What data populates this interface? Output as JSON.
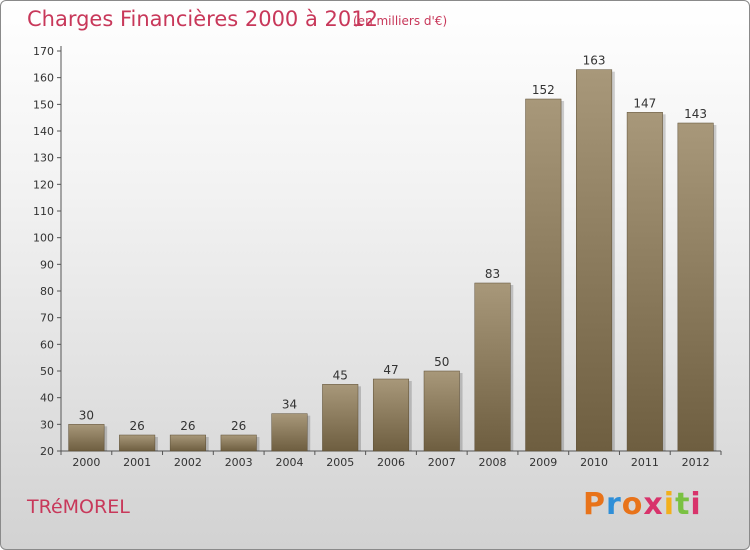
{
  "header": {
    "title": "Charges Financières 2000 à 2012",
    "subtitle": "(en milliers d'€)"
  },
  "footer": {
    "commune": "TRéMOREL",
    "logo_text": "Proxiti"
  },
  "colors": {
    "title": "#c8385a",
    "bar_top": "#a8987a",
    "bar_bottom": "#6e5e40",
    "logo_letters": [
      "#e8731a",
      "#2f8fd8",
      "#e8731a",
      "#d8336b",
      "#f2b01c",
      "#7ac142",
      "#d8336b"
    ]
  },
  "chart_data": {
    "type": "bar",
    "title": "Charges Financières 2000 à 2012",
    "subtitle": "(en milliers d'€)",
    "categories": [
      "2000",
      "2001",
      "2002",
      "2003",
      "2004",
      "2005",
      "2006",
      "2007",
      "2008",
      "2009",
      "2010",
      "2011",
      "2012"
    ],
    "values": [
      30,
      26,
      26,
      26,
      34,
      45,
      47,
      50,
      83,
      152,
      163,
      147,
      143
    ],
    "ylim": [
      20,
      170
    ],
    "yticks": [
      20,
      30,
      40,
      50,
      60,
      70,
      80,
      90,
      100,
      110,
      120,
      130,
      140,
      150,
      160,
      170
    ],
    "grid": false,
    "data_labels": true
  }
}
